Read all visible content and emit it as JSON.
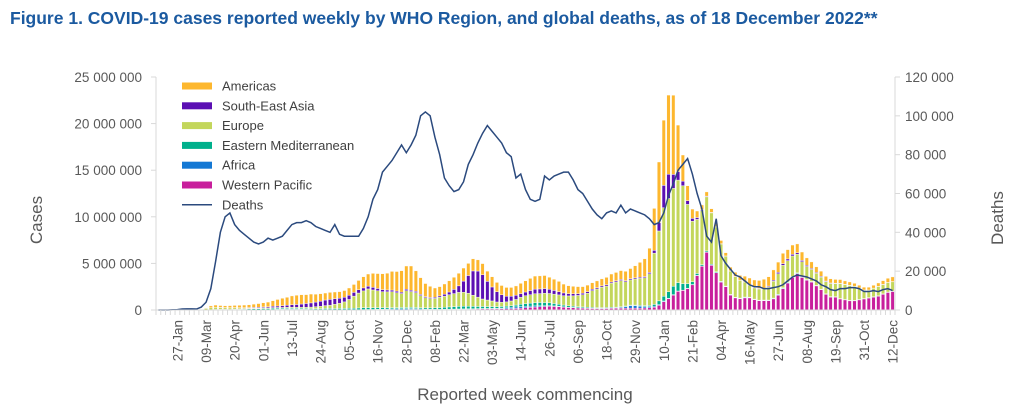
{
  "chart_data": {
    "type": "bar",
    "title": "Figure 1. COVID-19 cases reported weekly by WHO Region, and global deaths, as of 18 December 2022**",
    "xlabel": "Reported week commencing",
    "ylabel": "Cases",
    "y2label": "Deaths",
    "ylim": [
      0,
      25000000
    ],
    "y2lim": [
      0,
      120000
    ],
    "yticks": [
      "0",
      "5 000 000",
      "10 000 000",
      "15 000 000",
      "20 000 000",
      "25 000 000"
    ],
    "y2ticks": [
      "0",
      "20 000",
      "40 000",
      "60 000",
      "80 000",
      "100 000",
      "120 000"
    ],
    "xtick_labels": [
      "27-Jan",
      "09-Mar",
      "20-Apr",
      "01-Jun",
      "13-Jul",
      "24-Aug",
      "05-Oct",
      "16-Nov",
      "28-Dec",
      "08-Feb",
      "22-Mar",
      "03-May",
      "14-Jun",
      "26-Jul",
      "06-Sep",
      "18-Oct",
      "29-Nov",
      "10-Jan",
      "21-Feb",
      "04-Apr",
      "16-May",
      "27-Jun",
      "08-Aug",
      "19-Sep",
      "31-Oct",
      "12-Dec"
    ],
    "xtick_first_week": 4,
    "xtick_every_weeks": 6,
    "legend_position": "top-left",
    "units_note": "cases in millions per week; deaths in thousands per week",
    "series": [
      {
        "name": "Western Pacific",
        "color": "#C81F9C",
        "values": [
          0.02,
          0.03,
          0.04,
          0.06,
          0.05,
          0.03,
          0.02,
          0.01,
          0.01,
          0.01,
          0.01,
          0.01,
          0.02,
          0.02,
          0.02,
          0.01,
          0.01,
          0.01,
          0.01,
          0.01,
          0.01,
          0.01,
          0.01,
          0.01,
          0.01,
          0.02,
          0.02,
          0.03,
          0.03,
          0.03,
          0.03,
          0.02,
          0.02,
          0.02,
          0.02,
          0.02,
          0.02,
          0.02,
          0.02,
          0.02,
          0.02,
          0.02,
          0.02,
          0.03,
          0.03,
          0.03,
          0.04,
          0.04,
          0.04,
          0.05,
          0.05,
          0.05,
          0.05,
          0.06,
          0.06,
          0.05,
          0.04,
          0.04,
          0.04,
          0.04,
          0.05,
          0.05,
          0.06,
          0.07,
          0.08,
          0.09,
          0.1,
          0.11,
          0.12,
          0.12,
          0.12,
          0.12,
          0.13,
          0.14,
          0.15,
          0.17,
          0.2,
          0.24,
          0.28,
          0.32,
          0.35,
          0.38,
          0.4,
          0.38,
          0.35,
          0.3,
          0.27,
          0.25,
          0.22,
          0.2,
          0.18,
          0.17,
          0.16,
          0.16,
          0.17,
          0.18,
          0.19,
          0.2,
          0.2,
          0.2,
          0.2,
          0.2,
          0.22,
          0.25,
          0.3,
          0.5,
          0.9,
          1.2,
          1.6,
          2.0,
          2.1,
          2.3,
          2.7,
          3.7,
          4.7,
          6.2,
          4.8,
          4.0,
          3.0,
          2.5,
          1.6,
          1.3,
          1.2,
          1.3,
          1.3,
          1.1,
          1.0,
          1.0,
          1.0,
          1.2,
          1.6,
          2.3,
          2.9,
          3.5,
          3.9,
          3.5,
          3.2,
          3.0,
          2.6,
          2.2,
          1.7,
          1.4,
          1.4,
          1.2,
          1.1,
          1.0,
          1.0,
          1.1,
          1.2,
          1.3,
          1.4,
          1.5,
          1.7,
          1.9,
          2.0
        ]
      },
      {
        "name": "Africa",
        "color": "#1478D4",
        "values": [
          0,
          0,
          0,
          0,
          0,
          0,
          0,
          0,
          0,
          0,
          0,
          0,
          0,
          0,
          0,
          0,
          0.01,
          0.01,
          0.01,
          0.02,
          0.02,
          0.02,
          0.03,
          0.03,
          0.04,
          0.05,
          0.06,
          0.07,
          0.07,
          0.07,
          0.06,
          0.05,
          0.04,
          0.03,
          0.03,
          0.03,
          0.03,
          0.02,
          0.02,
          0.02,
          0.02,
          0.02,
          0.02,
          0.02,
          0.03,
          0.03,
          0.04,
          0.05,
          0.06,
          0.07,
          0.08,
          0.09,
          0.1,
          0.1,
          0.09,
          0.07,
          0.05,
          0.04,
          0.03,
          0.03,
          0.03,
          0.04,
          0.04,
          0.04,
          0.04,
          0.04,
          0.04,
          0.04,
          0.04,
          0.04,
          0.05,
          0.06,
          0.08,
          0.11,
          0.14,
          0.16,
          0.17,
          0.16,
          0.14,
          0.12,
          0.1,
          0.08,
          0.07,
          0.06,
          0.05,
          0.04,
          0.03,
          0.03,
          0.02,
          0.02,
          0.02,
          0.02,
          0.02,
          0.02,
          0.02,
          0.03,
          0.04,
          0.08,
          0.15,
          0.25,
          0.25,
          0.2,
          0.15,
          0.12,
          0.1,
          0.08,
          0.07,
          0.06,
          0.05,
          0.04,
          0.03,
          0.03,
          0.03,
          0.02,
          0.02,
          0.02,
          0.02,
          0.02,
          0.02,
          0.02,
          0.03,
          0.04,
          0.05,
          0.06,
          0.05,
          0.04,
          0.03,
          0.03,
          0.02,
          0.02,
          0.02,
          0.02,
          0.02,
          0.02,
          0.02,
          0.02,
          0.02,
          0.02,
          0.01,
          0.01,
          0.01,
          0.01,
          0.01,
          0.01,
          0.01,
          0.01,
          0.01,
          0.01,
          0.01,
          0.01,
          0.01,
          0.01,
          0.01,
          0.01,
          0.01
        ]
      },
      {
        "name": "Eastern Mediterranean",
        "color": "#00B08C",
        "values": [
          0,
          0,
          0,
          0,
          0,
          0,
          0,
          0,
          0,
          0.01,
          0.01,
          0.03,
          0.04,
          0.05,
          0.05,
          0.05,
          0.06,
          0.07,
          0.08,
          0.09,
          0.1,
          0.11,
          0.12,
          0.12,
          0.13,
          0.12,
          0.11,
          0.1,
          0.1,
          0.09,
          0.09,
          0.1,
          0.1,
          0.1,
          0.1,
          0.12,
          0.12,
          0.12,
          0.13,
          0.13,
          0.14,
          0.15,
          0.18,
          0.2,
          0.2,
          0.19,
          0.18,
          0.17,
          0.15,
          0.14,
          0.13,
          0.13,
          0.12,
          0.12,
          0.12,
          0.13,
          0.14,
          0.15,
          0.17,
          0.19,
          0.21,
          0.24,
          0.26,
          0.28,
          0.28,
          0.27,
          0.25,
          0.23,
          0.22,
          0.21,
          0.2,
          0.18,
          0.17,
          0.17,
          0.18,
          0.2,
          0.24,
          0.28,
          0.32,
          0.35,
          0.36,
          0.34,
          0.3,
          0.26,
          0.22,
          0.19,
          0.16,
          0.14,
          0.12,
          0.11,
          0.1,
          0.09,
          0.08,
          0.08,
          0.08,
          0.08,
          0.08,
          0.08,
          0.08,
          0.08,
          0.08,
          0.09,
          0.1,
          0.12,
          0.2,
          0.4,
          0.5,
          0.7,
          0.9,
          0.9,
          0.7,
          0.5,
          0.3,
          0.2,
          0.15,
          0.12,
          0.1,
          0.08,
          0.06,
          0.05,
          0.04,
          0.03,
          0.03,
          0.03,
          0.03,
          0.03,
          0.03,
          0.04,
          0.05,
          0.06,
          0.07,
          0.08,
          0.08,
          0.08,
          0.07,
          0.06,
          0.05,
          0.04,
          0.03,
          0.03,
          0.03,
          0.03,
          0.02,
          0.02,
          0.02,
          0.02,
          0.02,
          0.02,
          0.02,
          0.02,
          0.02,
          0.02,
          0.02,
          0.02,
          0.02,
          0.02,
          0.02
        ]
      },
      {
        "name": "Europe",
        "color": "#C3D65B",
        "values": [
          0,
          0,
          0,
          0,
          0,
          0,
          0,
          0,
          0.01,
          0.05,
          0.15,
          0.2,
          0.22,
          0.2,
          0.18,
          0.17,
          0.15,
          0.12,
          0.1,
          0.08,
          0.08,
          0.07,
          0.07,
          0.07,
          0.08,
          0.08,
          0.08,
          0.09,
          0.1,
          0.1,
          0.11,
          0.13,
          0.15,
          0.2,
          0.25,
          0.3,
          0.35,
          0.45,
          0.55,
          0.7,
          0.95,
          1.3,
          1.6,
          1.8,
          2.0,
          1.9,
          1.8,
          1.7,
          1.7,
          1.7,
          1.6,
          1.5,
          1.8,
          1.7,
          1.6,
          1.3,
          1.1,
          1.0,
          1.0,
          1.1,
          1.2,
          1.3,
          1.4,
          1.5,
          1.5,
          1.4,
          1.2,
          1.0,
          0.8,
          0.7,
          0.6,
          0.5,
          0.45,
          0.45,
          0.5,
          0.6,
          0.75,
          0.85,
          0.9,
          0.95,
          0.95,
          1.0,
          1.0,
          1.0,
          1.0,
          1.0,
          1.05,
          1.1,
          1.2,
          1.3,
          1.5,
          1.8,
          2.0,
          2.2,
          2.3,
          2.6,
          2.7,
          2.8,
          2.6,
          2.7,
          2.8,
          2.9,
          3.0,
          3.4,
          5.5,
          7.5,
          9.5,
          10.0,
          10.5,
          11.0,
          10.5,
          8.5,
          6.5,
          5.8,
          5.8,
          5.8,
          5.5,
          4.8,
          4.0,
          3.2,
          2.5,
          2.2,
          1.9,
          1.6,
          1.3,
          1.2,
          1.2,
          1.2,
          1.4,
          1.8,
          2.2,
          2.4,
          2.3,
          2.2,
          2.0,
          1.6,
          1.4,
          1.3,
          1.3,
          1.3,
          1.3,
          1.4,
          1.4,
          1.6,
          1.6,
          1.6,
          1.5,
          1.2,
          0.9,
          0.8,
          0.9,
          1.0,
          1.0,
          1.0,
          1.0
        ]
      },
      {
        "name": "South-East Asia",
        "color": "#5B0FB3",
        "values": [
          0,
          0,
          0,
          0,
          0,
          0,
          0,
          0,
          0,
          0,
          0,
          0,
          0,
          0.01,
          0.01,
          0.02,
          0.03,
          0.04,
          0.05,
          0.06,
          0.07,
          0.08,
          0.1,
          0.12,
          0.14,
          0.16,
          0.19,
          0.22,
          0.26,
          0.3,
          0.35,
          0.4,
          0.45,
          0.5,
          0.55,
          0.6,
          0.62,
          0.6,
          0.55,
          0.5,
          0.45,
          0.4,
          0.35,
          0.32,
          0.3,
          0.28,
          0.25,
          0.23,
          0.2,
          0.18,
          0.17,
          0.15,
          0.15,
          0.14,
          0.13,
          0.12,
          0.11,
          0.11,
          0.12,
          0.15,
          0.2,
          0.3,
          0.45,
          0.7,
          1.2,
          1.9,
          2.6,
          2.8,
          2.6,
          2.0,
          1.5,
          1.1,
          0.8,
          0.6,
          0.5,
          0.45,
          0.4,
          0.4,
          0.45,
          0.5,
          0.5,
          0.5,
          0.45,
          0.4,
          0.35,
          0.3,
          0.25,
          0.22,
          0.2,
          0.18,
          0.17,
          0.15,
          0.14,
          0.13,
          0.13,
          0.12,
          0.12,
          0.12,
          0.12,
          0.12,
          0.12,
          0.12,
          0.12,
          0.14,
          0.3,
          0.9,
          2.4,
          2.6,
          1.5,
          0.9,
          0.5,
          0.4,
          0.3,
          0.2,
          0.1,
          0.08,
          0.05,
          0.04,
          0.03,
          0.03,
          0.03,
          0.03,
          0.03,
          0.04,
          0.05,
          0.05,
          0.06,
          0.08,
          0.1,
          0.12,
          0.15,
          0.18,
          0.18,
          0.17,
          0.15,
          0.14,
          0.12,
          0.1,
          0.09,
          0.08,
          0.07,
          0.06,
          0.05,
          0.04,
          0.04,
          0.03,
          0.03,
          0.03,
          0.02,
          0.02,
          0.02,
          0.02,
          0.02,
          0.02,
          0.02
        ]
      },
      {
        "name": "Americas",
        "color": "#FDB72E",
        "values": [
          0,
          0,
          0,
          0,
          0,
          0,
          0,
          0,
          0,
          0.01,
          0.05,
          0.2,
          0.25,
          0.2,
          0.2,
          0.22,
          0.23,
          0.25,
          0.28,
          0.3,
          0.35,
          0.4,
          0.45,
          0.5,
          0.6,
          0.7,
          0.8,
          0.85,
          0.95,
          1.0,
          1.0,
          0.95,
          0.95,
          0.85,
          0.8,
          0.75,
          0.75,
          0.72,
          0.7,
          0.72,
          0.78,
          0.85,
          1.0,
          1.2,
          1.3,
          1.5,
          1.6,
          1.7,
          1.8,
          2.0,
          2.1,
          2.3,
          2.5,
          2.6,
          2.2,
          1.8,
          1.4,
          1.2,
          1.0,
          1.0,
          1.1,
          1.2,
          1.3,
          1.35,
          1.4,
          1.3,
          1.3,
          1.2,
          1.2,
          1.1,
          1.1,
          1.0,
          1.0,
          0.95,
          0.95,
          1.0,
          1.1,
          1.2,
          1.3,
          1.4,
          1.4,
          1.4,
          1.3,
          1.2,
          1.1,
          0.95,
          0.85,
          0.8,
          0.75,
          0.7,
          0.7,
          0.7,
          0.72,
          0.75,
          0.8,
          0.85,
          0.9,
          0.95,
          1.0,
          1.1,
          1.3,
          1.6,
          1.9,
          2.6,
          4.5,
          6.5,
          7.0,
          8.5,
          8.5,
          5.0,
          2.8,
          1.6,
          1.0,
          0.7,
          0.5,
          0.45,
          0.4,
          0.35,
          0.35,
          0.35,
          0.4,
          0.45,
          0.5,
          0.6,
          0.7,
          0.8,
          0.85,
          0.95,
          1.0,
          1.1,
          1.1,
          1.1,
          1.0,
          1.0,
          0.95,
          0.9,
          0.8,
          0.7,
          0.6,
          0.55,
          0.5,
          0.45,
          0.4,
          0.4,
          0.35,
          0.35,
          0.3,
          0.3,
          0.3,
          0.3,
          0.3,
          0.35,
          0.4,
          0.45,
          0.5
        ]
      }
    ],
    "line": {
      "name": "Deaths",
      "color": "#2B4A7E",
      "values": [
        0,
        0,
        0,
        0.1,
        0.2,
        0.5,
        0.6,
        0.6,
        0.5,
        1.5,
        4,
        11,
        25,
        40,
        48,
        50,
        44,
        41,
        39,
        37,
        35,
        34,
        35,
        37,
        36,
        37,
        38,
        41,
        44,
        45,
        45,
        46,
        45,
        43,
        42,
        41,
        40,
        44,
        39,
        38,
        38,
        38,
        38,
        42,
        48,
        57,
        62,
        71,
        74,
        77,
        81,
        85,
        81,
        85,
        90,
        100,
        102,
        100,
        89,
        80,
        68,
        64,
        61,
        62,
        66,
        75,
        80,
        86,
        91,
        95,
        92,
        89,
        86,
        81,
        79,
        68,
        70,
        62,
        57,
        56,
        57,
        69,
        67,
        69,
        70,
        71,
        71,
        67,
        62,
        60,
        56,
        52,
        49,
        47,
        50,
        51,
        50,
        54,
        50,
        52,
        51,
        50,
        49,
        47,
        44,
        45,
        50,
        59,
        65,
        72,
        75,
        78,
        70,
        60,
        52,
        38,
        35,
        47,
        28,
        24,
        21,
        18,
        17,
        15,
        13,
        12,
        12,
        11,
        11,
        11.5,
        12,
        13,
        15,
        17,
        18,
        17.5,
        17,
        16,
        15,
        13,
        12,
        10.5,
        10,
        11,
        11,
        11.5,
        11.5,
        11,
        9.5,
        9.5,
        10,
        9.5,
        10.5,
        11,
        10
      ]
    },
    "legend": [
      "Americas",
      "South-East Asia",
      "Europe",
      "Eastern Mediterranean",
      "Africa",
      "Western Pacific",
      "Deaths"
    ]
  }
}
